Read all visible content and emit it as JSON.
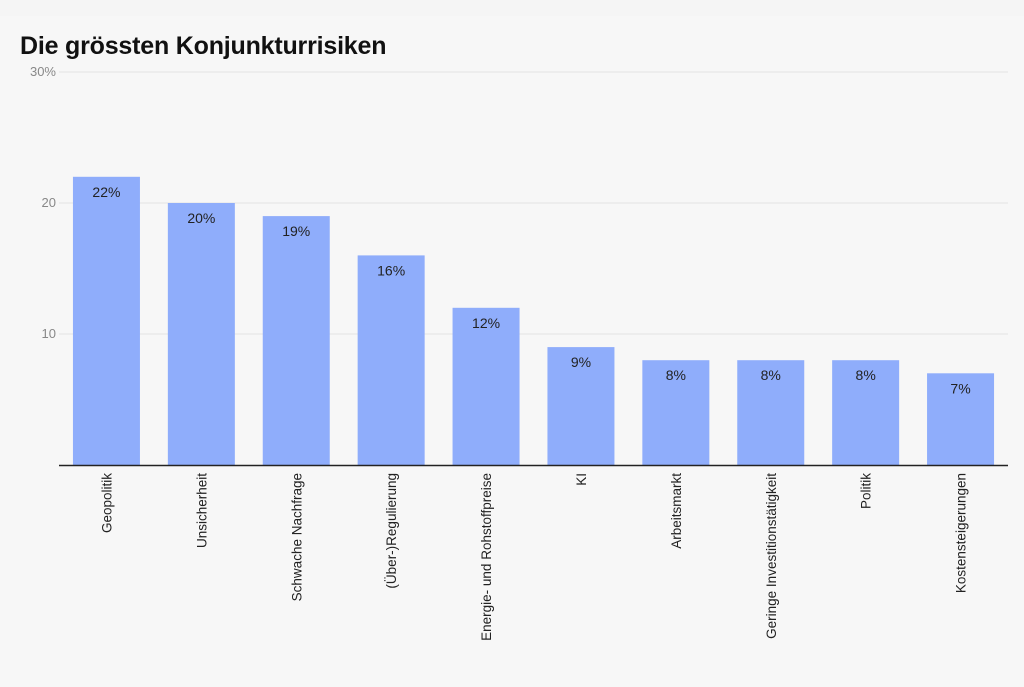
{
  "chart_data": {
    "type": "bar",
    "title": "Die grössten Konjunkturrisiken",
    "xlabel": "",
    "ylabel": "",
    "categories": [
      "Geopolitik",
      "Unsicherheit",
      "Schwache Nachfrage",
      "(Über-)Regulierung",
      "Energie- und Rohstoffpreise",
      "KI",
      "Arbeitsmarkt",
      "Geringe Investitionstätigkeit",
      "Politik",
      "Kostensteigerungen"
    ],
    "values": [
      22,
      20,
      19,
      16,
      12,
      9,
      8,
      8,
      8,
      7
    ],
    "data_labels": [
      "22%",
      "20%",
      "19%",
      "16%",
      "12%",
      "9%",
      "8%",
      "8%",
      "8%",
      "7%"
    ],
    "ylim": [
      0,
      30
    ],
    "yticks": [
      10,
      20,
      30
    ],
    "ytick_labels": [
      "10",
      "20",
      "30%"
    ],
    "grid": true,
    "colors": {
      "bar": "#8fadfb",
      "grid": "#e3e3e3",
      "axis": "#222222",
      "tick_label": "#888888",
      "text": "#222222"
    }
  }
}
